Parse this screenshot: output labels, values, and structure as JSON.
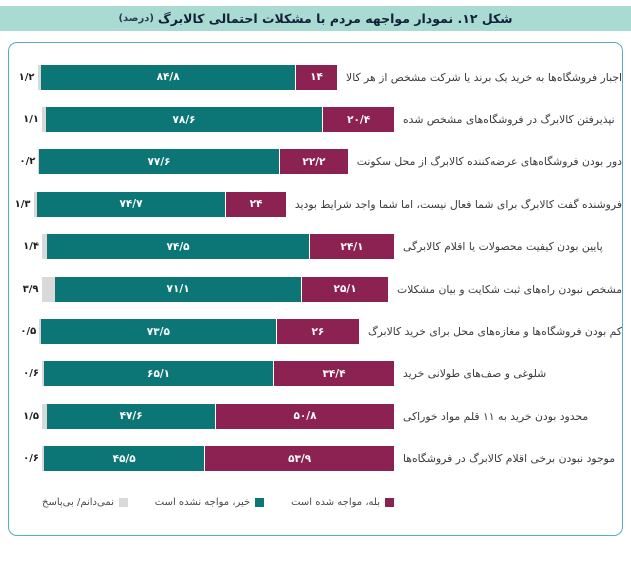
{
  "title": {
    "text": "شکل ۱۲. نمودار مواجهه مردم با مشکلات احتمالی کالابرگ",
    "suffix": "(درصد)"
  },
  "colors": {
    "yes": "#8c2251",
    "no": "#0c7576",
    "dk": "#d9d9d9",
    "title_bg": "#a9dbd2",
    "panel_border": "#58aebf"
  },
  "chart_data": {
    "type": "bar",
    "orientation": "horizontal-stacked",
    "direction": "rtl",
    "title": "شکل ۱۲. نمودار مواجهه مردم با مشکلات احتمالی کالابرگ (درصد)",
    "unit": "درصد",
    "xlim": [
      0,
      100
    ],
    "grid": false,
    "legend_position": "bottom",
    "series_names": [
      "خیر، مواجه نشده است",
      "بله، مواجه شده است",
      "نمی‌دانم/ بی‌پاسخ"
    ],
    "rows": [
      {
        "label": "اجبار فروشگاه‌ها به خرید یک برند یا شرکت مشخص از هر کالا",
        "no": 84.8,
        "no_label": "۸۴/۸",
        "yes": 14,
        "yes_label": "۱۴",
        "dk": 1.2,
        "dk_label": "۱/۲"
      },
      {
        "label": "نپذیرفتن کالابرگ در فروشگاه‌های مشخص شده",
        "no": 78.6,
        "no_label": "۷۸/۶",
        "yes": 20.4,
        "yes_label": "۲۰/۴",
        "dk": 1.1,
        "dk_label": "۱/۱"
      },
      {
        "label": "دور بودن فروشگاه‌های عرضه‌کننده کالابرگ از محل سکونت",
        "no": 77.6,
        "no_label": "۷۷/۶",
        "yes": 22.2,
        "yes_label": "۲۲/۲",
        "dk": 0.2,
        "dk_label": "۰/۲"
      },
      {
        "label": "فروشنده گفت کالابرگ برای شما فعال نیست، اما شما واجد شرایط بودید",
        "no": 74.7,
        "no_label": "۷۴/۷",
        "yes": 24,
        "yes_label": "۲۴",
        "dk": 1.3,
        "dk_label": "۱/۳"
      },
      {
        "label": "پایین بودن کیفیت محصولات یا اقلام کالابرگی",
        "no": 74.5,
        "no_label": "۷۴/۵",
        "yes": 24.1,
        "yes_label": "۲۴/۱",
        "dk": 1.4,
        "dk_label": "۱/۴"
      },
      {
        "label": "مشخص نبودن راه‌های ثبت شکایت و بیان مشکلات",
        "no": 71.1,
        "no_label": "۷۱/۱",
        "yes": 25.1,
        "yes_label": "۲۵/۱",
        "dk": 3.9,
        "dk_label": "۳/۹"
      },
      {
        "label": "کم بودن فروشگاه‌ها و مغازه‌های محل برای خرید کالابرگ",
        "no": 73.5,
        "no_label": "۷۳/۵",
        "yes": 26,
        "yes_label": "۲۶",
        "dk": 0.5,
        "dk_label": "۰/۵"
      },
      {
        "label": "شلوغی و صف‌های طولانی خرید",
        "no": 65.1,
        "no_label": "۶۵/۱",
        "yes": 34.4,
        "yes_label": "۳۴/۴",
        "dk": 0.6,
        "dk_label": "۰/۶"
      },
      {
        "label": "محدود بودن خرید به ۱۱ قلم مواد خوراکی",
        "no": 47.6,
        "no_label": "۴۷/۶",
        "yes": 50.8,
        "yes_label": "۵۰/۸",
        "dk": 1.5,
        "dk_label": "۱/۵"
      },
      {
        "label": "موجود نبودن برخی اقلام کالابرگ در فروشگاه‌ها",
        "no": 45.5,
        "no_label": "۴۵/۵",
        "yes": 53.9,
        "yes_label": "۵۳/۹",
        "dk": 0.6,
        "dk_label": "۰/۶"
      }
    ],
    "legend": [
      {
        "label": "نمی‌دانم/ بی‌پاسخ",
        "color": "#d9d9d9"
      },
      {
        "label": "خیر، مواجه نشده است",
        "color": "#0c7576"
      },
      {
        "label": "بله، مواجه شده است",
        "color": "#8c2251"
      }
    ]
  }
}
